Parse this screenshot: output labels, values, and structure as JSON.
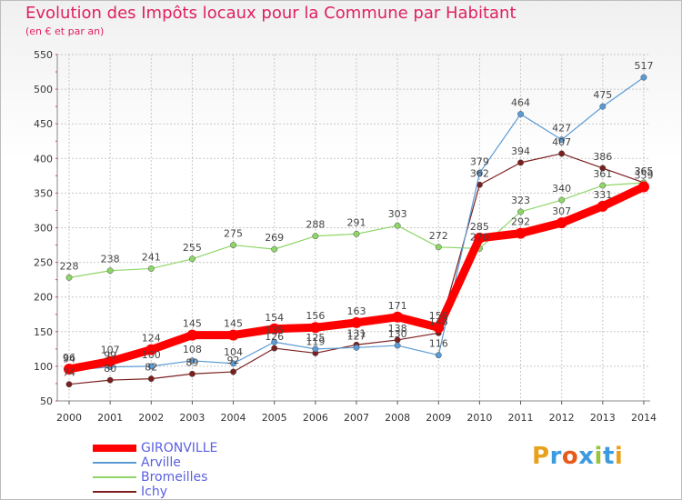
{
  "header": {
    "title": "Evolution des Impôts locaux pour la Commune par Habitant",
    "subtitle": "(en € et par an)"
  },
  "logo": {
    "text": "Proxiti"
  },
  "chart_data": {
    "type": "line",
    "title": "Evolution des Impôts locaux pour la Commune par Habitant",
    "subtitle": "(en € et par an)",
    "xlabel": "",
    "ylabel": "",
    "ylim": [
      50,
      550
    ],
    "yticks": [
      50,
      100,
      150,
      200,
      250,
      300,
      350,
      400,
      450,
      500,
      550
    ],
    "grid": true,
    "legend_position": "bottom-left",
    "categories": [
      "2000",
      "2001",
      "2002",
      "2003",
      "2004",
      "2005",
      "2006",
      "2007",
      "2008",
      "2009",
      "2010",
      "2011",
      "2012",
      "2013",
      "2014"
    ],
    "series": [
      {
        "name": "GIRONVILLE",
        "color": "#ff0000",
        "values": [
          96,
          107,
          124,
          145,
          145,
          154,
          156,
          163,
          171,
          156,
          285,
          292,
          307,
          331,
          359
        ]
      },
      {
        "name": "Arville",
        "color": "#5b9bd5",
        "values": [
          94,
          99,
          100,
          108,
          104,
          135,
          125,
          127,
          130,
          116,
          379,
          464,
          427,
          475,
          517
        ]
      },
      {
        "name": "Bromeilles",
        "color": "#8ed668",
        "values": [
          228,
          238,
          241,
          255,
          275,
          269,
          288,
          291,
          303,
          272,
          270,
          323,
          340,
          361,
          365
        ]
      },
      {
        "name": "Ichy",
        "color": "#7b1f1f",
        "values": [
          74,
          80,
          82,
          89,
          92,
          126,
          119,
          131,
          138,
          148,
          362,
          394,
          407,
          386,
          365
        ]
      }
    ]
  }
}
